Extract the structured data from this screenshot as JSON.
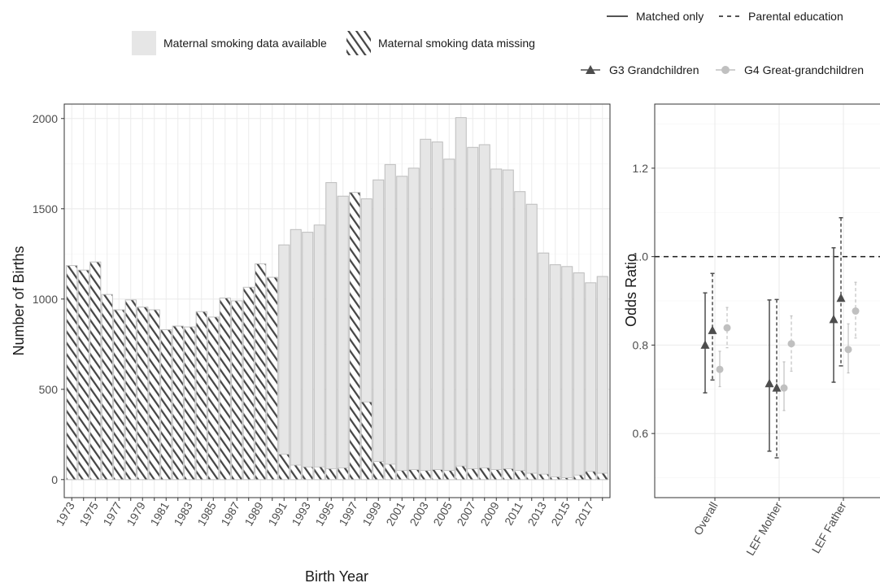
{
  "legend_fill": {
    "available_label": "Maternal smoking data available",
    "missing_label": "Maternal smoking data missing"
  },
  "legend_line": {
    "solid_label": "Matched only",
    "dashed_label": "Parental education"
  },
  "legend_shape": {
    "g3_label": "G3 Grandchildren",
    "g4_label": "G4 Great-grandchildren"
  },
  "colors": {
    "available_fill": "#e6e6e6",
    "available_stroke": "#bdbdbd",
    "missing_fill": "#ffffff",
    "hatch": "#444444",
    "g3": "#4d4d4d",
    "g4": "#c0c0c0",
    "grid_major": "#ebebeb",
    "grid_minor": "#f5f5f5",
    "panel_border": "#333333"
  },
  "chart_data": [
    {
      "type": "bar",
      "stacked": "overlay",
      "xlabel": "Birth Year",
      "ylabel": "Number of Births",
      "ylim": [
        -100,
        2080
      ],
      "yticks": [
        0,
        500,
        1000,
        1500,
        2000
      ],
      "grid": true,
      "categories": [
        1973,
        1974,
        1975,
        1976,
        1977,
        1978,
        1979,
        1980,
        1981,
        1982,
        1983,
        1984,
        1985,
        1986,
        1987,
        1988,
        1989,
        1990,
        1991,
        1992,
        1993,
        1994,
        1995,
        1996,
        1997,
        1998,
        1999,
        2000,
        2001,
        2002,
        2003,
        2004,
        2005,
        2006,
        2007,
        2008,
        2009,
        2010,
        2011,
        2012,
        2013,
        2014,
        2015,
        2016,
        2017,
        2018
      ],
      "xtick_labels": [
        "1973",
        "1975",
        "1977",
        "1979",
        "1981",
        "1983",
        "1985",
        "1987",
        "1989",
        "1991",
        "1993",
        "1995",
        "1997",
        "1999",
        "2001",
        "2003",
        "2005",
        "2007",
        "2009",
        "2011",
        "2013",
        "2015",
        "2017"
      ],
      "series": [
        {
          "name": "Maternal smoking data available",
          "values": [
            1185,
            1160,
            1205,
            1025,
            940,
            995,
            955,
            940,
            830,
            850,
            845,
            930,
            900,
            1005,
            990,
            1065,
            1195,
            1120,
            1300,
            1385,
            1370,
            1410,
            1645,
            1570,
            1590,
            1555,
            1660,
            1745,
            1680,
            1725,
            1885,
            1870,
            1775,
            2005,
            1840,
            1855,
            1720,
            1715,
            1595,
            1525,
            1255,
            1190,
            1180,
            1145,
            1090,
            1125
          ]
        },
        {
          "name": "Maternal smoking data missing",
          "values": [
            1185,
            1160,
            1205,
            1025,
            940,
            995,
            955,
            940,
            830,
            850,
            845,
            930,
            900,
            1005,
            990,
            1065,
            1195,
            1120,
            140,
            80,
            70,
            70,
            60,
            65,
            1590,
            430,
            100,
            85,
            50,
            55,
            50,
            55,
            50,
            75,
            60,
            65,
            55,
            60,
            50,
            35,
            30,
            15,
            10,
            25,
            45,
            35
          ]
        }
      ]
    },
    {
      "type": "scatter",
      "subtype": "point-range",
      "xlabel": "",
      "ylabel": "Odds Ratio",
      "ylim": [
        0.455,
        1.345
      ],
      "yticks": [
        0.6,
        0.8,
        1.0,
        1.2
      ],
      "ytick_labels": [
        "0.6",
        "0.8",
        "1.0",
        "1.2"
      ],
      "reference_line": 1.0,
      "grid": true,
      "categories": [
        "Overall",
        "LEF Mother",
        "LEF Father"
      ],
      "series": [
        {
          "name": "G3 Grandchildren",
          "line": "Matched only",
          "estimate": [
            0.8,
            0.713,
            0.858
          ],
          "lower": [
            0.692,
            0.56,
            0.716
          ],
          "upper": [
            0.918,
            0.902,
            1.02
          ]
        },
        {
          "name": "G3 Grandchildren",
          "line": "Parental education",
          "estimate": [
            0.833,
            0.703,
            0.906
          ],
          "lower": [
            0.721,
            0.545,
            0.753
          ],
          "upper": [
            0.962,
            0.903,
            1.088
          ]
        },
        {
          "name": "G4 Great-grandchildren",
          "line": "Matched only",
          "estimate": [
            0.745,
            0.703,
            0.79
          ],
          "lower": [
            0.706,
            0.652,
            0.737
          ],
          "upper": [
            0.786,
            0.762,
            0.848
          ]
        },
        {
          "name": "G4 Great-grandchildren",
          "line": "Parental education",
          "estimate": [
            0.839,
            0.803,
            0.877
          ],
          "lower": [
            0.794,
            0.741,
            0.816
          ],
          "upper": [
            0.885,
            0.866,
            0.942
          ]
        }
      ]
    }
  ]
}
